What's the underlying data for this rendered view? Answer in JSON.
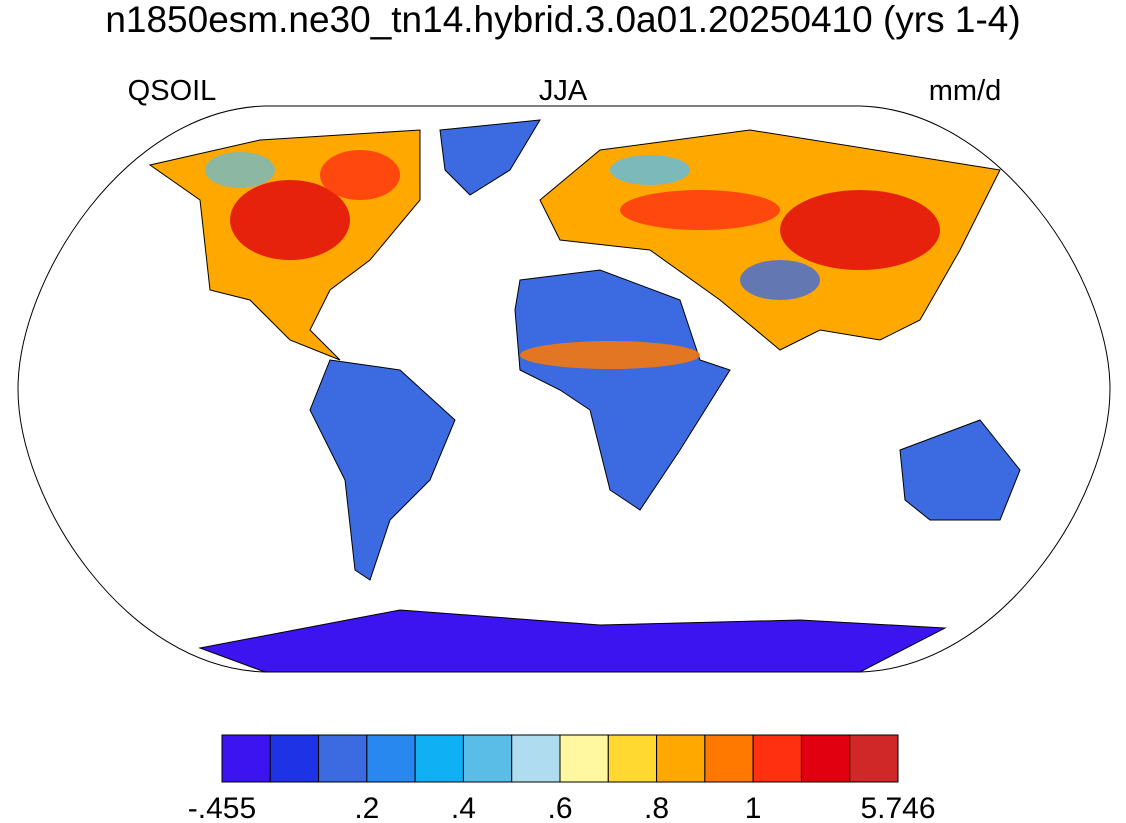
{
  "header": {
    "title": "n1850esm.ne30_tn14.hybrid.3.0a01.20250410 (yrs 1-4)",
    "left_label": "QSOIL",
    "center_label": "JJA",
    "right_label": "mm/d"
  },
  "colorbar": {
    "colors": [
      "#3c14f0",
      "#1e32e6",
      "#3c6ae0",
      "#2888f0",
      "#10b0f5",
      "#5abde8",
      "#b0dcf0",
      "#fff8a0",
      "#ffd830",
      "#ffa800",
      "#ff7800",
      "#ff3010",
      "#e00010",
      "#d02828"
    ],
    "boundary_labels": [
      "-.455",
      null,
      null,
      ".2",
      null,
      ".4",
      null,
      ".6",
      null,
      ".8",
      null,
      "1",
      null,
      null,
      "5.746"
    ]
  }
}
